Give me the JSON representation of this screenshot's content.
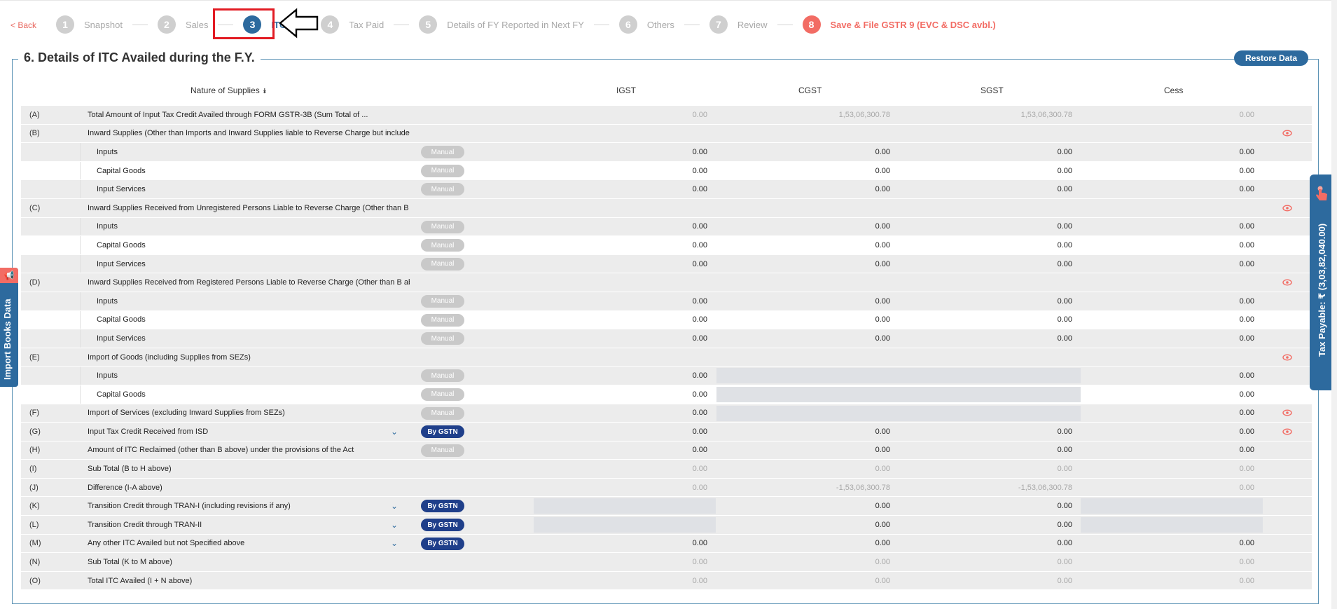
{
  "nav": {
    "back": "< Back",
    "steps": [
      {
        "num": "1",
        "label": "Snapshot"
      },
      {
        "num": "2",
        "label": "Sales"
      },
      {
        "num": "3",
        "label": "ITC"
      },
      {
        "num": "4",
        "label": "Tax Paid"
      },
      {
        "num": "5",
        "label": "Details of FY Reported in Next FY"
      },
      {
        "num": "6",
        "label": "Others"
      },
      {
        "num": "7",
        "label": "Review"
      },
      {
        "num": "8",
        "label": "Save & File GSTR 9 (EVC & DSC avbl.)"
      }
    ]
  },
  "section": {
    "title": "6. Details of ITC Availed during the F.Y.",
    "restore": "Restore Data"
  },
  "table": {
    "headers": {
      "nature": "Nature of Supplies",
      "igst": "IGST",
      "cgst": "CGST",
      "sgst": "SGST",
      "cess": "Cess"
    },
    "tags": {
      "manual": "Manual",
      "gstn": "By GSTN"
    },
    "rows": [
      {
        "code": "(A)",
        "desc": "Total Amount of Input Tax Credit Availed through FORM GSTR-3B (Sum Total of ...",
        "igst": "0.00",
        "cgst": "1,53,06,300.78",
        "sgst": "1,53,06,300.78",
        "cess": "0.00"
      },
      {
        "code": "(B)",
        "desc": "Inward Supplies (Other than Imports and Inward Supplies liable to Reverse Charge but includes Services Received from SEZs)"
      },
      {
        "sub": "Inputs",
        "igst": "0.00",
        "cgst": "0.00",
        "sgst": "0.00",
        "cess": "0.00"
      },
      {
        "sub": "Capital Goods",
        "igst": "0.00",
        "cgst": "0.00",
        "sgst": "0.00",
        "cess": "0.00"
      },
      {
        "sub": "Input Services",
        "igst": "0.00",
        "cgst": "0.00",
        "sgst": "0.00",
        "cess": "0.00"
      },
      {
        "code": "(C)",
        "desc": "Inward Supplies Received from Unregistered Persons Liable to Reverse Charge (Other than B above) on which Tax is Paid & ITC Availed"
      },
      {
        "sub": "Inputs",
        "igst": "0.00",
        "cgst": "0.00",
        "sgst": "0.00",
        "cess": "0.00"
      },
      {
        "sub": "Capital Goods",
        "igst": "0.00",
        "cgst": "0.00",
        "sgst": "0.00",
        "cess": "0.00"
      },
      {
        "sub": "Input Services",
        "igst": "0.00",
        "cgst": "0.00",
        "sgst": "0.00",
        "cess": "0.00"
      },
      {
        "code": "(D)",
        "desc": "Inward Supplies Received from Registered Persons Liable to Reverse Charge (Other than B above) on which Tax is Paid & ITC Availed"
      },
      {
        "sub": "Inputs",
        "igst": "0.00",
        "cgst": "0.00",
        "sgst": "0.00",
        "cess": "0.00"
      },
      {
        "sub": "Capital Goods",
        "igst": "0.00",
        "cgst": "0.00",
        "sgst": "0.00",
        "cess": "0.00"
      },
      {
        "sub": "Input Services",
        "igst": "0.00",
        "cgst": "0.00",
        "sgst": "0.00",
        "cess": "0.00"
      },
      {
        "code": "(E)",
        "desc": "Import of Goods (including Supplies from SEZs)"
      },
      {
        "sub": "Inputs",
        "igst": "0.00",
        "cess": "0.00"
      },
      {
        "sub": "Capital Goods",
        "igst": "0.00",
        "cess": "0.00"
      },
      {
        "code": "(F)",
        "desc": "Import of Services (excluding Inward Supplies from SEZs)",
        "igst": "0.00",
        "cess": "0.00"
      },
      {
        "code": "(G)",
        "desc": "Input Tax Credit Received from ISD",
        "igst": "0.00",
        "cgst": "0.00",
        "sgst": "0.00",
        "cess": "0.00"
      },
      {
        "code": "(H)",
        "desc": "Amount of ITC Reclaimed (other than B above) under the provisions of the Act",
        "igst": "0.00",
        "cgst": "0.00",
        "sgst": "0.00",
        "cess": "0.00"
      },
      {
        "code": "(I)",
        "desc": "Sub Total (B to H above)",
        "igst": "0.00",
        "cgst": "0.00",
        "sgst": "0.00",
        "cess": "0.00"
      },
      {
        "code": "(J)",
        "desc": "Difference (I-A above)",
        "igst": "0.00",
        "cgst": "-1,53,06,300.78",
        "sgst": "-1,53,06,300.78",
        "cess": "0.00"
      },
      {
        "code": "(K)",
        "desc": "Transition Credit through TRAN-I (including revisions if any)",
        "cgst": "0.00",
        "sgst": "0.00"
      },
      {
        "code": "(L)",
        "desc": "Transition Credit through TRAN-II",
        "cgst": "0.00",
        "sgst": "0.00"
      },
      {
        "code": "(M)",
        "desc": "Any other ITC Availed but not Specified above",
        "igst": "0.00",
        "cgst": "0.00",
        "sgst": "0.00",
        "cess": "0.00"
      },
      {
        "code": "(N)",
        "desc": "Sub Total (K to M above)",
        "igst": "0.00",
        "cgst": "0.00",
        "sgst": "0.00",
        "cess": "0.00"
      },
      {
        "code": "(O)",
        "desc": "Total ITC Availed (I + N above)",
        "igst": "0.00",
        "cgst": "0.00",
        "sgst": "0.00",
        "cess": "0.00"
      }
    ]
  },
  "side": {
    "import_books": "Import Books Data",
    "tax_payable": "Tax Payable: ₹ (3,03,82,040.00)"
  },
  "colors": {
    "accent": "#2d6a9e",
    "save": "#f26c64",
    "highlight": "#e21b23",
    "gstn": "#1f3f8a"
  }
}
